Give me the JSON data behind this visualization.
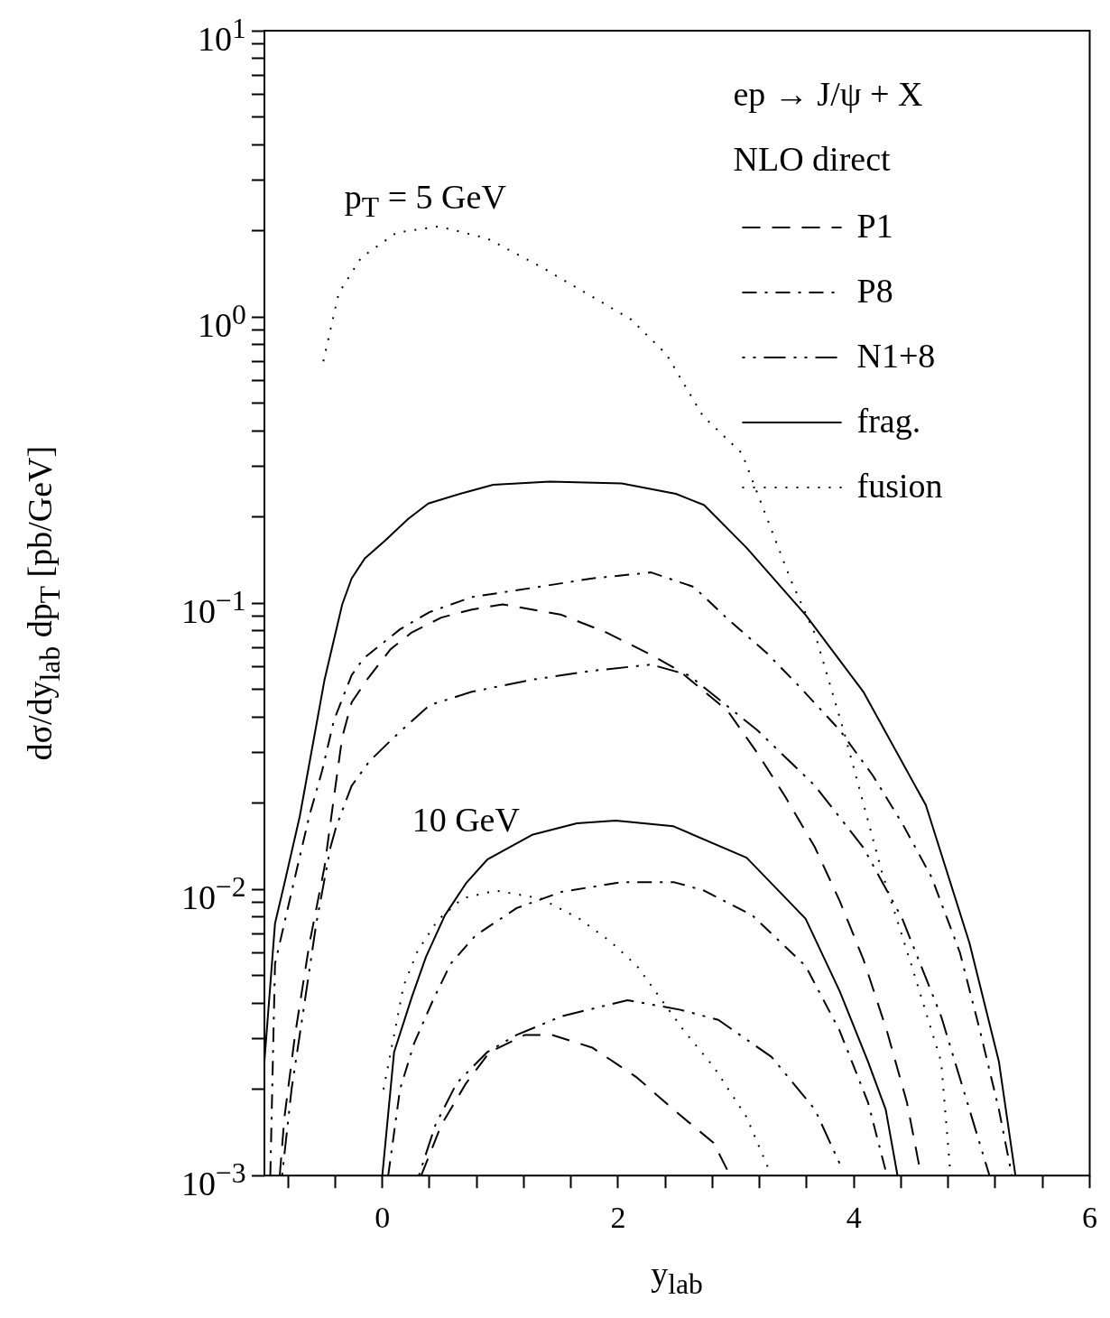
{
  "chart_data": {
    "type": "line",
    "xlabel": "y$_{lab}$",
    "ylabel": "dσ/dy$_{lab}$ dp$_{T}$ [pb/GeV]",
    "log": "y",
    "xlim": [
      -1,
      6
    ],
    "ylim": [
      0.001,
      10
    ],
    "xticks": [
      {
        "value": -0.8,
        "label": null
      },
      {
        "value": -0.4,
        "label": null
      },
      0,
      {
        "value": 0.4,
        "label": null
      },
      {
        "value": 0.8,
        "label": null
      },
      {
        "value": 1.2,
        "label": null
      },
      {
        "value": 1.6,
        "label": null
      },
      2,
      {
        "value": 2.4,
        "label": null
      },
      {
        "value": 2.8,
        "label": null
      },
      {
        "value": 3.2,
        "label": null
      },
      {
        "value": 3.6,
        "label": null
      },
      4,
      {
        "value": 4.4,
        "label": null
      },
      {
        "value": 4.8,
        "label": null
      },
      {
        "value": 5.2,
        "label": null
      },
      {
        "value": 5.6,
        "label": null
      },
      6
    ],
    "yticks": [
      {
        "value": 0.001,
        "label": "10$^{−3}$"
      },
      {
        "value": 0.002,
        "label": null
      },
      {
        "value": 0.003,
        "label": null
      },
      {
        "value": 0.004,
        "label": null
      },
      {
        "value": 0.005,
        "label": null
      },
      {
        "value": 0.006,
        "label": null
      },
      {
        "value": 0.007,
        "label": null
      },
      {
        "value": 0.008,
        "label": null
      },
      {
        "value": 0.009,
        "label": null
      },
      {
        "value": 0.01,
        "label": "10$^{−2}$"
      },
      {
        "value": 0.02,
        "label": null
      },
      {
        "value": 0.03,
        "label": null
      },
      {
        "value": 0.04,
        "label": null
      },
      {
        "value": 0.05,
        "label": null
      },
      {
        "value": 0.06,
        "label": null
      },
      {
        "value": 0.07,
        "label": null
      },
      {
        "value": 0.08,
        "label": null
      },
      {
        "value": 0.09,
        "label": null
      },
      {
        "value": 0.1,
        "label": "10$^{−1}$"
      },
      {
        "value": 0.2,
        "label": null
      },
      {
        "value": 0.3,
        "label": null
      },
      {
        "value": 0.4,
        "label": null
      },
      {
        "value": 0.5,
        "label": null
      },
      {
        "value": 0.6,
        "label": null
      },
      {
        "value": 0.7,
        "label": null
      },
      {
        "value": 0.8,
        "label": null
      },
      {
        "value": 0.9,
        "label": null
      },
      {
        "value": 1,
        "label": "10$^{0}$"
      },
      {
        "value": 2,
        "label": null
      },
      {
        "value": 3,
        "label": null
      },
      {
        "value": 4,
        "label": null
      },
      {
        "value": 5,
        "label": null
      },
      {
        "value": 6,
        "label": null
      },
      {
        "value": 7,
        "label": null
      },
      {
        "value": 8,
        "label": null
      },
      {
        "value": 9,
        "label": null
      },
      {
        "value": 10,
        "label": "10$^{1}$"
      }
    ],
    "legend": "top right",
    "marker": "none",
    "annotations": [
      "ep → J/ψ + X",
      "NLO direct",
      "p$_{T}$ = 5 GeV",
      "10 GeV"
    ],
    "series": [
      {
        "name": "P1",
        "color": "#000000",
        "line_style": "dashed",
        "x": [
          -0.87,
          -0.83,
          -0.74,
          -0.62,
          -0.49,
          -0.41,
          -0.34,
          -0.26,
          -0.13,
          0.07,
          0.25,
          0.5,
          0.76,
          1.02,
          1.52,
          1.9,
          2.28,
          2.52,
          2.93,
          3.18,
          3.42,
          3.67,
          3.88,
          4.08,
          4.28,
          4.45,
          4.57
        ],
        "values": [
          0.001,
          0.0016,
          0.0031,
          0.0064,
          0.012,
          0.021,
          0.034,
          0.045,
          0.054,
          0.069,
          0.079,
          0.089,
          0.095,
          0.099,
          0.091,
          0.079,
          0.066,
          0.058,
          0.042,
          0.03,
          0.021,
          0.014,
          0.0091,
          0.0057,
          0.0032,
          0.0018,
          0.001
        ]
      },
      {
        "name": "P8",
        "color": "#000000",
        "line_style": "dashdot",
        "x": [
          -0.95,
          -0.91,
          -0.72,
          -0.62,
          -0.51,
          -0.41,
          -0.26,
          -0.16,
          0.15,
          0.4,
          0.76,
          1.27,
          1.78,
          2.28,
          2.64,
          2.93,
          3.26,
          3.54,
          3.88,
          4.16,
          4.41,
          4.66,
          4.9,
          5.07,
          5.23,
          5.34
        ],
        "values": [
          0.001,
          0.0055,
          0.012,
          0.018,
          0.026,
          0.039,
          0.056,
          0.064,
          0.081,
          0.093,
          0.105,
          0.113,
          0.122,
          0.128,
          0.114,
          0.088,
          0.067,
          0.051,
          0.036,
          0.025,
          0.017,
          0.011,
          0.006,
          0.0032,
          0.0017,
          0.001
        ]
      },
      {
        "name": "N1+8",
        "color": "#000000",
        "line_style": "dashdotdot",
        "x": [
          -0.85,
          -0.77,
          -0.66,
          -0.56,
          -0.44,
          -0.39,
          -0.26,
          -0.11,
          0.1,
          0.4,
          0.76,
          1.27,
          1.78,
          2.28,
          2.6,
          3.18,
          3.67,
          4.08,
          4.41,
          4.74,
          4.98,
          5.15
        ],
        "values": [
          0.001,
          0.002,
          0.004,
          0.0076,
          0.014,
          0.0166,
          0.023,
          0.028,
          0.034,
          0.044,
          0.049,
          0.054,
          0.058,
          0.061,
          0.056,
          0.036,
          0.023,
          0.014,
          0.0079,
          0.0036,
          0.0017,
          0.001
        ]
      },
      {
        "name": "frag.",
        "color": "#000000",
        "line_style": "solid",
        "x": [
          -1,
          -0.91,
          -0.83,
          -0.7,
          -0.49,
          -0.34,
          -0.26,
          -0.15,
          0.02,
          0.22,
          0.39,
          0.66,
          0.94,
          1.42,
          2.03,
          2.49,
          2.73,
          3.09,
          3.59,
          4.08,
          4.61,
          4.98,
          5.23,
          5.37
        ],
        "values": [
          0.0025,
          0.0076,
          0.0105,
          0.018,
          0.054,
          0.099,
          0.122,
          0.143,
          0.165,
          0.197,
          0.223,
          0.241,
          0.259,
          0.266,
          0.262,
          0.241,
          0.22,
          0.156,
          0.091,
          0.049,
          0.0197,
          0.0065,
          0.0025,
          0.001
        ]
      },
      {
        "name": "fusion",
        "color": "#000000",
        "line_style": "dotted",
        "x": [
          -0.5,
          -0.37,
          -0.18,
          0.12,
          0.48,
          0.89,
          1.34,
          1.73,
          2.11,
          2.41,
          2.72,
          3.05,
          3.47,
          3.67,
          3.92,
          4.24,
          4.49,
          4.74,
          4.82
        ],
        "values": [
          0.7,
          1.21,
          1.61,
          1.97,
          2.07,
          1.88,
          1.5,
          1.21,
          0.98,
          0.74,
          0.45,
          0.334,
          0.119,
          0.078,
          0.035,
          0.0114,
          0.0054,
          0.0025,
          0.001
        ]
      },
      {
        "color": "#000000",
        "line_style": "dashed",
        "x": [
          0.33,
          0.5,
          0.71,
          0.91,
          1.21,
          1.44,
          1.78,
          2.16,
          2.47,
          2.81,
          2.95
        ],
        "values": [
          0.001,
          0.0015,
          0.0021,
          0.0027,
          0.0031,
          0.0031,
          0.0028,
          0.0022,
          0.0017,
          0.0013,
          0.001
        ]
      },
      {
        "color": "#000000",
        "line_style": "dashdot",
        "x": [
          0.05,
          0.15,
          0.27,
          0.43,
          0.58,
          0.79,
          1.14,
          1.52,
          2.03,
          2.47,
          2.73,
          3.14,
          3.59,
          3.88,
          4.12,
          4.28
        ],
        "values": [
          0.001,
          0.002,
          0.0029,
          0.0041,
          0.0055,
          0.0069,
          0.0086,
          0.0098,
          0.0106,
          0.0106,
          0.0099,
          0.0081,
          0.0054,
          0.0032,
          0.0018,
          0.001
        ]
      },
      {
        "color": "#000000",
        "line_style": "dashdotdot",
        "x": [
          0.31,
          0.45,
          0.63,
          0.89,
          1.14,
          1.52,
          2.08,
          2.52,
          2.85,
          3.3,
          3.67,
          3.88
        ],
        "values": [
          0.001,
          0.0015,
          0.0021,
          0.0027,
          0.0031,
          0.0036,
          0.0041,
          0.0038,
          0.0035,
          0.0026,
          0.0017,
          0.0011
        ]
      },
      {
        "color": "#000000",
        "line_style": "solid",
        "x": [
          0,
          0.1,
          0.25,
          0.37,
          0.53,
          0.71,
          0.89,
          1.27,
          1.65,
          1.98,
          2.47,
          3.09,
          3.59,
          3.88,
          4.12,
          4.27,
          4.37
        ],
        "values": [
          0.001,
          0.0027,
          0.0042,
          0.0058,
          0.0081,
          0.0105,
          0.0127,
          0.0155,
          0.017,
          0.0174,
          0.0166,
          0.0129,
          0.0079,
          0.0044,
          0.0025,
          0.0017,
          0.001
        ]
      },
      {
        "color": "#000000",
        "line_style": "dotted",
        "x": [
          0.01,
          0.1,
          0.18,
          0.3,
          0.47,
          0.68,
          0.96,
          1.34,
          1.67,
          1.93,
          2.16,
          2.56,
          2.81,
          3.09,
          3.3
        ],
        "values": [
          0.002,
          0.0031,
          0.0046,
          0.0061,
          0.0078,
          0.0093,
          0.0099,
          0.0093,
          0.0079,
          0.0066,
          0.0054,
          0.0032,
          0.0024,
          0.0016,
          0.001
        ]
      }
    ]
  }
}
